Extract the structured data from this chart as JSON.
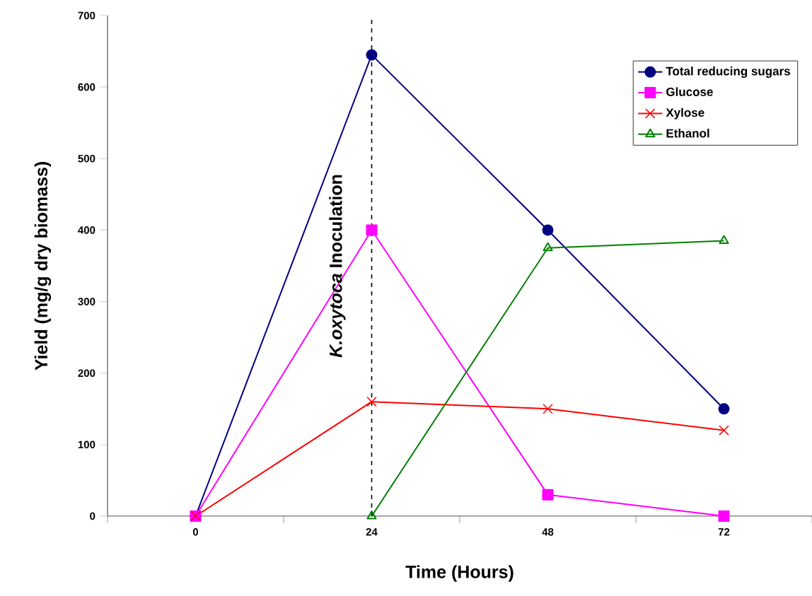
{
  "chart_data": {
    "type": "line",
    "xlabel": "Time (Hours)",
    "ylabel": "Yield (mg/g dry biomass)",
    "categories": [
      "0",
      "24",
      "48",
      "72"
    ],
    "series": [
      {
        "name": "Total reducing sugars",
        "color": "#000080",
        "marker": "circle",
        "values": [
          0,
          645,
          400,
          150
        ]
      },
      {
        "name": "Glucose",
        "color": "#ff00ff",
        "marker": "square",
        "values": [
          0,
          400,
          30,
          0
        ]
      },
      {
        "name": "Xylose",
        "color": "#ff0000",
        "marker": "cross",
        "values": [
          0,
          160,
          150,
          120
        ]
      },
      {
        "name": "Ethanol",
        "color": "#008000",
        "marker": "triangle",
        "values": [
          null,
          0,
          375,
          385
        ]
      }
    ],
    "ylim": [
      0,
      700
    ],
    "yticks": [
      0,
      100,
      200,
      300,
      400,
      500,
      600,
      700
    ],
    "ref_lines": [
      {
        "axis": "x",
        "value": "24",
        "label": "*K.oxytoca* Inoculation",
        "line_style": "dashed",
        "color": "#000000"
      }
    ],
    "legend": "top right",
    "grid": false,
    "line_style": "solid"
  }
}
